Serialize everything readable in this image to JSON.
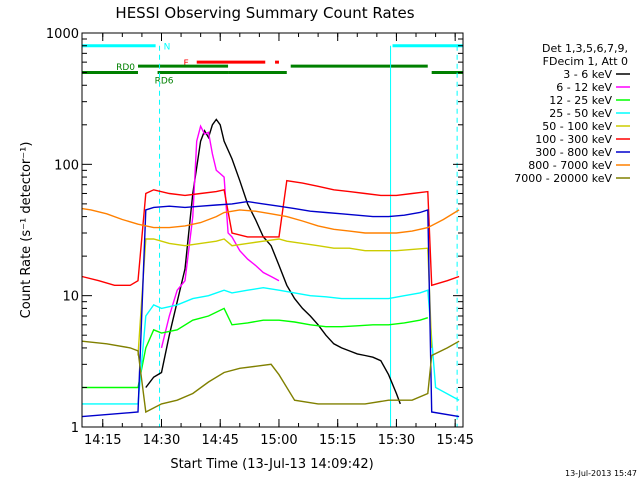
{
  "chart_data": {
    "type": "line",
    "title": "HESSI Observing Summary Count Rates",
    "xlabel": "Start Time (13-Jul-13 14:09:42)",
    "ylabel": "Count Rate (s⁻¹ detector⁻¹)",
    "ylim": [
      1,
      1000
    ],
    "yscale": "log",
    "xlim": [
      "14:09:42",
      "15:47:00"
    ],
    "grid": false,
    "legend_position": "right",
    "x_ticks": [
      "14:15",
      "14:30",
      "14:45",
      "15:00",
      "15:15",
      "15:30",
      "15:45"
    ],
    "y_ticks": [
      "1",
      "10",
      "100",
      "1000"
    ],
    "legend_header": [
      "Det 1,3,5,6,7,9,",
      "FDecim 1, Att 0"
    ],
    "footer_date": "13-Jul-2013 15:47",
    "state_bars": {
      "night": {
        "label": "N",
        "color": "#00ffff",
        "value": 800,
        "intervals": [
          [
            "14:09:42",
            "14:28:30"
          ],
          [
            "15:29:00",
            "15:47:00"
          ]
        ]
      },
      "flare": {
        "label": "F",
        "color": "#ff0000",
        "value": 600,
        "intervals": [
          [
            "14:39:00",
            "14:56:30"
          ],
          [
            "14:59:00",
            "15:00:00"
          ]
        ]
      },
      "rd0": {
        "label": "RD0",
        "color": "#008000",
        "value": 560,
        "intervals": [
          [
            "14:24:00",
            "14:47:00"
          ],
          [
            "15:03:00",
            "15:38:00"
          ]
        ]
      },
      "rd6": {
        "label": "RD6",
        "color": "#008000",
        "value": 500,
        "intervals": [
          [
            "14:09:42",
            "14:24:00"
          ],
          [
            "14:29:00",
            "14:47:00"
          ],
          [
            "14:47:00",
            "15:02:00"
          ],
          [
            "15:39:00",
            "15:47:00"
          ]
        ]
      }
    },
    "dashed_verticals": {
      "color": "#00ffff",
      "times": [
        "14:29:30",
        "15:45:30"
      ]
    },
    "solid_verticals": {
      "color": "#00ffff",
      "times": [
        "15:28:30"
      ]
    },
    "series": [
      {
        "name": "3 - 6 keV",
        "color": "#000000",
        "points": [
          [
            "14:26:00",
            2.0
          ],
          [
            "14:28:00",
            2.4
          ],
          [
            "14:30:00",
            2.6
          ],
          [
            "14:32:00",
            5.0
          ],
          [
            "14:34:00",
            9.0
          ],
          [
            "14:36:00",
            16.0
          ],
          [
            "14:38:00",
            60.0
          ],
          [
            "14:40:00",
            150.0
          ],
          [
            "14:41:00",
            180.0
          ],
          [
            "14:42:00",
            160.0
          ],
          [
            "14:43:00",
            200.0
          ],
          [
            "14:44:00",
            220.0
          ],
          [
            "14:45:00",
            200.0
          ],
          [
            "14:46:00",
            150.0
          ],
          [
            "14:48:00",
            110.0
          ],
          [
            "14:50:00",
            75.0
          ],
          [
            "14:52:00",
            50.0
          ],
          [
            "14:54:00",
            38.0
          ],
          [
            "14:56:00",
            28.0
          ],
          [
            "14:58:00",
            24.0
          ],
          [
            "15:00:00",
            17.0
          ],
          [
            "15:02:00",
            12.0
          ],
          [
            "15:04:00",
            9.5
          ],
          [
            "15:06:00",
            8.0
          ],
          [
            "15:08:00",
            7.0
          ],
          [
            "15:10:00",
            6.0
          ],
          [
            "15:12:00",
            5.0
          ],
          [
            "15:14:00",
            4.3
          ],
          [
            "15:16:00",
            4.0
          ],
          [
            "15:18:00",
            3.8
          ],
          [
            "15:20:00",
            3.6
          ],
          [
            "15:22:00",
            3.5
          ],
          [
            "15:24:00",
            3.4
          ],
          [
            "15:26:00",
            3.2
          ],
          [
            "15:28:00",
            2.5
          ],
          [
            "15:30:00",
            1.8
          ],
          [
            "15:31:00",
            1.5
          ]
        ]
      },
      {
        "name": "6 - 12 keV",
        "color": "#ff00ff",
        "points": [
          [
            "14:30:00",
            4.0
          ],
          [
            "14:32:00",
            7.0
          ],
          [
            "14:34:00",
            11.0
          ],
          [
            "14:36:00",
            13.0
          ],
          [
            "14:38:00",
            40.0
          ],
          [
            "14:39:00",
            150.0
          ],
          [
            "14:40:00",
            195.0
          ],
          [
            "14:41:00",
            170.0
          ],
          [
            "14:42:00",
            175.0
          ],
          [
            "14:43:00",
            120.0
          ],
          [
            "14:44:00",
            90.0
          ],
          [
            "14:45:00",
            85.0
          ],
          [
            "14:46:00",
            80.0
          ],
          [
            "14:47:00",
            30.0
          ],
          [
            "14:48:00",
            28.0
          ],
          [
            "14:50:00",
            22.0
          ],
          [
            "14:52:00",
            19.0
          ],
          [
            "14:54:00",
            17.0
          ],
          [
            "14:56:00",
            15.0
          ],
          [
            "14:58:00",
            14.0
          ],
          [
            "15:00:00",
            13.0
          ]
        ]
      },
      {
        "name": "12 - 25 keV",
        "color": "#00ff00",
        "points": [
          [
            "14:09:42",
            2.0
          ],
          [
            "14:24:00",
            2.0
          ],
          [
            "14:26:00",
            4.0
          ],
          [
            "14:28:00",
            5.5
          ],
          [
            "14:30:00",
            5.2
          ],
          [
            "14:34:00",
            5.5
          ],
          [
            "14:38:00",
            6.5
          ],
          [
            "14:42:00",
            7.0
          ],
          [
            "14:46:00",
            8.0
          ],
          [
            "14:48:00",
            6.0
          ],
          [
            "14:52:00",
            6.2
          ],
          [
            "14:56:00",
            6.5
          ],
          [
            "15:00:00",
            6.5
          ],
          [
            "15:04:00",
            6.3
          ],
          [
            "15:08:00",
            6.0
          ],
          [
            "15:12:00",
            5.8
          ],
          [
            "15:16:00",
            5.8
          ],
          [
            "15:20:00",
            5.9
          ],
          [
            "15:24:00",
            6.0
          ],
          [
            "15:28:00",
            6.0
          ],
          [
            "15:32:00",
            6.2
          ],
          [
            "15:36:00",
            6.5
          ],
          [
            "15:38:00",
            6.8
          ]
        ]
      },
      {
        "name": "25 - 50 keV",
        "color": "#00ffff",
        "points": [
          [
            "14:09:42",
            1.5
          ],
          [
            "14:24:00",
            1.5
          ],
          [
            "14:26:00",
            7.0
          ],
          [
            "14:28:00",
            8.5
          ],
          [
            "14:30:00",
            8.0
          ],
          [
            "14:34:00",
            8.5
          ],
          [
            "14:38:00",
            9.5
          ],
          [
            "14:42:00",
            10.0
          ],
          [
            "14:46:00",
            11.0
          ],
          [
            "14:48:00",
            10.5
          ],
          [
            "14:52:00",
            11.0
          ],
          [
            "14:56:00",
            11.5
          ],
          [
            "15:00:00",
            11.0
          ],
          [
            "15:04:00",
            10.5
          ],
          [
            "15:08:00",
            10.0
          ],
          [
            "15:12:00",
            9.8
          ],
          [
            "15:16:00",
            9.5
          ],
          [
            "15:20:00",
            9.5
          ],
          [
            "15:24:00",
            9.5
          ],
          [
            "15:28:00",
            9.5
          ],
          [
            "15:32:00",
            10.0
          ],
          [
            "15:36:00",
            10.5
          ],
          [
            "15:38:00",
            11.0
          ],
          [
            "15:40:00",
            2.0
          ],
          [
            "15:46:00",
            1.6
          ]
        ]
      },
      {
        "name": "50 - 100 keV",
        "color": "#cccc00",
        "points": [
          [
            "14:24:00",
            3.5
          ],
          [
            "14:26:00",
            27.0
          ],
          [
            "14:28:00",
            27.0
          ],
          [
            "14:32:00",
            25.0
          ],
          [
            "14:36:00",
            24.0
          ],
          [
            "14:40:00",
            25.0
          ],
          [
            "14:44:00",
            26.0
          ],
          [
            "14:46:00",
            27.0
          ],
          [
            "14:48:00",
            24.0
          ],
          [
            "14:52:00",
            25.0
          ],
          [
            "14:56:00",
            26.0
          ],
          [
            "15:00:00",
            27.0
          ],
          [
            "15:02:00",
            26.0
          ],
          [
            "15:06:00",
            25.0
          ],
          [
            "15:10:00",
            24.0
          ],
          [
            "15:14:00",
            23.0
          ],
          [
            "15:18:00",
            23.0
          ],
          [
            "15:22:00",
            22.0
          ],
          [
            "15:26:00",
            22.0
          ],
          [
            "15:30:00",
            22.0
          ],
          [
            "15:34:00",
            22.5
          ],
          [
            "15:38:00",
            23.0
          ],
          [
            "15:39:00",
            4.0
          ]
        ]
      },
      {
        "name": "100 - 300 keV",
        "color": "#ff0000",
        "points": [
          [
            "14:09:42",
            14.0
          ],
          [
            "14:14:00",
            13.0
          ],
          [
            "14:18:00",
            12.0
          ],
          [
            "14:22:00",
            12.0
          ],
          [
            "14:24:00",
            13.0
          ],
          [
            "14:26:00",
            60.0
          ],
          [
            "14:28:00",
            64.0
          ],
          [
            "14:32:00",
            60.0
          ],
          [
            "14:36:00",
            58.0
          ],
          [
            "14:40:00",
            60.0
          ],
          [
            "14:44:00",
            62.0
          ],
          [
            "14:46:00",
            64.0
          ],
          [
            "14:48:00",
            30.0
          ],
          [
            "14:52:00",
            28.0
          ],
          [
            "14:56:00",
            28.0
          ],
          [
            "15:00:00",
            28.0
          ],
          [
            "15:02:00",
            75.0
          ],
          [
            "15:06:00",
            72.0
          ],
          [
            "15:10:00",
            68.0
          ],
          [
            "15:14:00",
            64.0
          ],
          [
            "15:18:00",
            62.0
          ],
          [
            "15:22:00",
            60.0
          ],
          [
            "15:26:00",
            58.0
          ],
          [
            "15:30:00",
            58.0
          ],
          [
            "15:34:00",
            60.0
          ],
          [
            "15:38:00",
            62.0
          ],
          [
            "15:39:00",
            12.0
          ],
          [
            "15:43:00",
            13.0
          ],
          [
            "15:46:00",
            14.0
          ]
        ]
      },
      {
        "name": "300 - 800 keV",
        "color": "#0000cc",
        "points": [
          [
            "14:09:42",
            1.2
          ],
          [
            "14:24:00",
            1.3
          ],
          [
            "14:26:00",
            45.0
          ],
          [
            "14:28:00",
            47.0
          ],
          [
            "14:32:00",
            48.0
          ],
          [
            "14:36:00",
            47.0
          ],
          [
            "14:40:00",
            48.0
          ],
          [
            "14:44:00",
            49.0
          ],
          [
            "14:48:00",
            50.0
          ],
          [
            "14:52:00",
            52.0
          ],
          [
            "14:56:00",
            50.0
          ],
          [
            "15:00:00",
            48.0
          ],
          [
            "15:04:00",
            46.0
          ],
          [
            "15:08:00",
            44.0
          ],
          [
            "15:12:00",
            43.0
          ],
          [
            "15:16:00",
            42.0
          ],
          [
            "15:20:00",
            41.0
          ],
          [
            "15:24:00",
            40.0
          ],
          [
            "15:28:00",
            40.0
          ],
          [
            "15:32:00",
            41.0
          ],
          [
            "15:36:00",
            43.0
          ],
          [
            "15:38:00",
            45.0
          ],
          [
            "15:39:00",
            1.3
          ],
          [
            "15:46:00",
            1.2
          ]
        ]
      },
      {
        "name": "800 - 7000 keV",
        "color": "#ff8000",
        "points": [
          [
            "14:09:42",
            46.0
          ],
          [
            "14:12:00",
            45.0
          ],
          [
            "14:16:00",
            42.0
          ],
          [
            "14:20:00",
            38.0
          ],
          [
            "14:24:00",
            35.0
          ],
          [
            "14:28:00",
            33.0
          ],
          [
            "14:32:00",
            33.0
          ],
          [
            "14:36:00",
            34.0
          ],
          [
            "14:40:00",
            36.0
          ],
          [
            "14:44:00",
            40.0
          ],
          [
            "14:46:00",
            43.0
          ],
          [
            "14:50:00",
            45.0
          ],
          [
            "14:54:00",
            44.0
          ],
          [
            "14:58:00",
            42.0
          ],
          [
            "15:02:00",
            40.0
          ],
          [
            "15:06:00",
            37.0
          ],
          [
            "15:10:00",
            34.0
          ],
          [
            "15:14:00",
            32.0
          ],
          [
            "15:18:00",
            31.0
          ],
          [
            "15:22:00",
            30.0
          ],
          [
            "15:26:00",
            30.0
          ],
          [
            "15:30:00",
            30.0
          ],
          [
            "15:34:00",
            31.0
          ],
          [
            "15:38:00",
            33.0
          ],
          [
            "15:42:00",
            38.0
          ],
          [
            "15:46:00",
            45.0
          ]
        ]
      },
      {
        "name": "7000 - 20000 keV",
        "color": "#808000",
        "points": [
          [
            "14:09:42",
            4.5
          ],
          [
            "14:16:00",
            4.3
          ],
          [
            "14:22:00",
            4.0
          ],
          [
            "14:24:00",
            3.8
          ],
          [
            "14:26:00",
            1.3
          ],
          [
            "14:30:00",
            1.5
          ],
          [
            "14:34:00",
            1.6
          ],
          [
            "14:38:00",
            1.8
          ],
          [
            "14:42:00",
            2.2
          ],
          [
            "14:46:00",
            2.6
          ],
          [
            "14:50:00",
            2.8
          ],
          [
            "14:54:00",
            2.9
          ],
          [
            "14:58:00",
            3.0
          ],
          [
            "15:00:00",
            2.5
          ],
          [
            "15:04:00",
            1.6
          ],
          [
            "15:10:00",
            1.5
          ],
          [
            "15:16:00",
            1.5
          ],
          [
            "15:22:00",
            1.5
          ],
          [
            "15:28:00",
            1.6
          ],
          [
            "15:34:00",
            1.6
          ],
          [
            "15:38:00",
            1.8
          ],
          [
            "15:39:00",
            3.5
          ],
          [
            "15:43:00",
            4.0
          ],
          [
            "15:46:00",
            4.5
          ]
        ]
      }
    ]
  }
}
